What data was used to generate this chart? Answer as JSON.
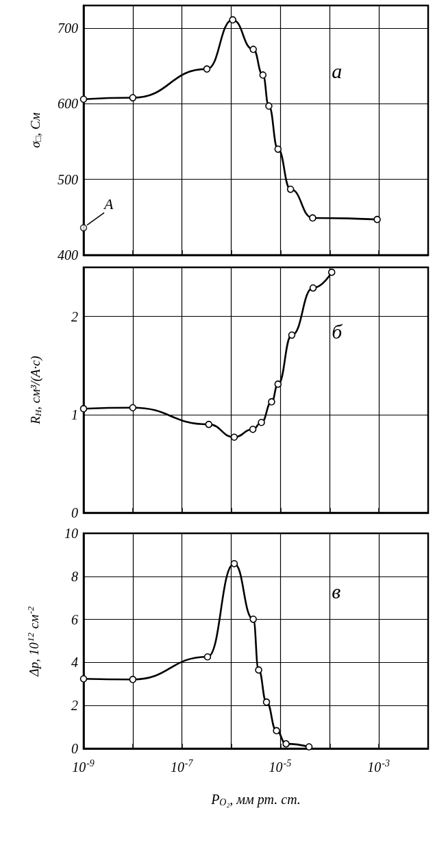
{
  "chart_data": [
    {
      "type": "line",
      "ylabel": "σ$_{□}$, См",
      "annotations": [
        "а",
        {
          "text": "A",
          "x": 1e-09,
          "y": 436
        }
      ],
      "log": "x",
      "xlim": [
        1e-09,
        0.01
      ],
      "ylim": [
        400,
        730
      ],
      "tick_labels": "y",
      "grid": true,
      "marker": "circle",
      "line_style": "solid",
      "xticks": [
        {
          "value": 1e-09,
          "label": null
        },
        {
          "value": 1e-08,
          "label": null
        },
        {
          "value": 1e-07,
          "label": null
        },
        {
          "value": 1e-06,
          "label": null
        },
        {
          "value": 1e-05,
          "label": null
        },
        {
          "value": 0.0001,
          "label": null
        },
        {
          "value": 0.001,
          "label": null
        }
      ],
      "yticks": [
        400,
        500,
        600,
        700
      ],
      "series": [
        {
          "color": "#000000",
          "x": [
            1e-09,
            1e-08,
            3.2e-07,
            1.07e-06,
            2.8e-06,
            4.4e-06,
            5.8e-06,
            8.9e-06,
            1.6e-05,
            4.5e-05,
            0.00092
          ],
          "values": [
            606,
            608,
            646,
            711,
            672,
            638,
            597,
            540,
            487,
            449,
            447
          ]
        },
        {
          "type": "scatter",
          "color": "#000000",
          "x": [
            1e-09
          ],
          "values": [
            436
          ]
        }
      ]
    },
    {
      "type": "line",
      "ylabel": "R$_{H}$, см³/(А·с)",
      "annotations": [
        "б"
      ],
      "log": "x",
      "xlim": [
        1e-09,
        0.01
      ],
      "ylim": [
        0,
        2.5
      ],
      "tick_labels": "y",
      "grid": true,
      "marker": "circle",
      "line_style": "solid",
      "xticks": [
        {
          "value": 1e-09,
          "label": null
        },
        {
          "value": 1e-08,
          "label": null
        },
        {
          "value": 1e-07,
          "label": null
        },
        {
          "value": 1e-06,
          "label": null
        },
        {
          "value": 1e-05,
          "label": null
        },
        {
          "value": 0.0001,
          "label": null
        },
        {
          "value": 0.001,
          "label": null
        }
      ],
      "yticks": [
        0,
        1,
        2
      ],
      "series": [
        {
          "color": "#000000",
          "x": [
            1e-09,
            1e-08,
            3.5e-07,
            1.15e-06,
            2.75e-06,
            4.1e-06,
            6.6e-06,
            8.9e-06,
            1.7e-05,
            4.6e-05,
            0.00011
          ],
          "values": [
            1.06,
            1.07,
            0.9,
            0.77,
            0.85,
            0.92,
            1.13,
            1.31,
            1.81,
            2.29,
            2.45
          ]
        }
      ]
    },
    {
      "type": "line",
      "xlabel": "P$_{O₂}$, мм рт. ст.",
      "ylabel": "Δp, 10$^{12}$ см$^{-2}$",
      "annotations": [
        "в"
      ],
      "log": "x",
      "xlim": [
        1e-09,
        0.01
      ],
      "ylim": [
        0,
        10
      ],
      "grid": true,
      "marker": "circle",
      "line_style": "solid",
      "xticks": [
        {
          "value": 1e-09,
          "label": "10$^{-9}$"
        },
        {
          "value": 1e-08,
          "label": null
        },
        {
          "value": 1e-07,
          "label": "10$^{-7}$"
        },
        {
          "value": 1e-06,
          "label": null
        },
        {
          "value": 1e-05,
          "label": "10$^{-5}$"
        },
        {
          "value": 0.0001,
          "label": null
        },
        {
          "value": 0.001,
          "label": "10$^{-3}$"
        }
      ],
      "yticks": [
        0,
        2,
        4,
        6,
        8,
        10
      ],
      "series": [
        {
          "color": "#000000",
          "x": [
            1e-09,
            1e-08,
            3.3e-07,
            1.15e-06,
            2.8e-06,
            3.6e-06,
            5.2e-06,
            8.3e-06,
            1.3e-05,
            3.8e-05
          ],
          "values": [
            3.24,
            3.21,
            4.26,
            8.59,
            6.01,
            3.65,
            2.16,
            0.83,
            0.22,
            0.08
          ]
        }
      ]
    }
  ]
}
